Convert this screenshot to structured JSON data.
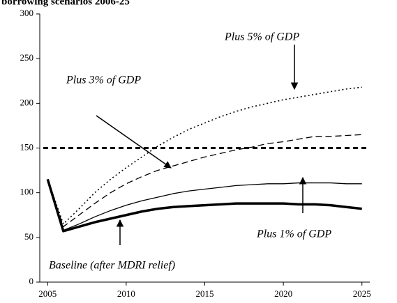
{
  "chart_data": {
    "type": "line",
    "title": "borrowing scenarios 2006-25",
    "x": [
      2005,
      2006,
      2007,
      2008,
      2009,
      2010,
      2011,
      2012,
      2013,
      2014,
      2015,
      2016,
      2017,
      2018,
      2019,
      2020,
      2021,
      2022,
      2023,
      2024,
      2025
    ],
    "series": [
      {
        "name": "Baseline (after MDRI relief)",
        "color": "#000000",
        "style": "thick",
        "values": [
          115,
          57,
          62,
          67,
          71,
          75,
          79,
          82,
          84,
          85,
          86,
          87,
          88,
          88,
          88,
          88,
          87,
          87,
          86,
          84,
          82
        ]
      },
      {
        "name": "Plus 1% of GDP",
        "color": "#000000",
        "style": "solid",
        "values": [
          115,
          58,
          65,
          73,
          80,
          86,
          91,
          95,
          99,
          102,
          104,
          106,
          108,
          109,
          110,
          110,
          111,
          111,
          111,
          110,
          110
        ]
      },
      {
        "name": "Plus 3% of GDP",
        "color": "#000000",
        "style": "dashed",
        "values": [
          115,
          62,
          75,
          88,
          100,
          110,
          118,
          125,
          130,
          135,
          140,
          144,
          148,
          151,
          155,
          157,
          160,
          163,
          163,
          164,
          165
        ]
      },
      {
        "name": "Plus 5% of GDP",
        "color": "#000000",
        "style": "dotted",
        "values": [
          115,
          65,
          82,
          100,
          115,
          128,
          140,
          152,
          162,
          171,
          178,
          185,
          191,
          196,
          200,
          204,
          207,
          210,
          213,
          216,
          218
        ]
      }
    ],
    "reference_line": 150,
    "xlim": [
      2004.5,
      2025.5
    ],
    "xticks": [
      2005,
      2010,
      2015,
      2020,
      2025
    ],
    "ylim": [
      0,
      300
    ],
    "yticks": [
      0,
      50,
      100,
      150,
      200,
      250,
      300
    ]
  }
}
